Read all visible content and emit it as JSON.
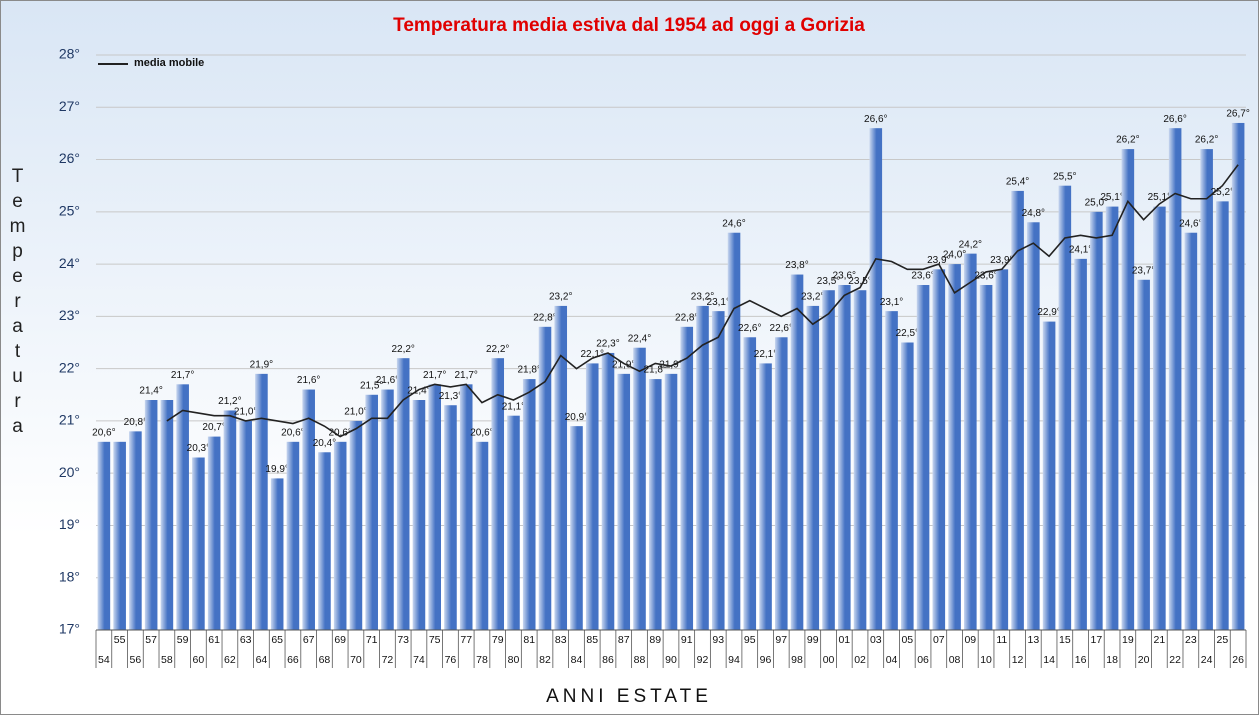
{
  "chart_data": {
    "type": "bar",
    "title": "Temperatura media estiva dal 1954 ad oggi a Gorizia",
    "y_label": "Temperatura",
    "x_label": "ANNI ESTATE",
    "categories": [
      "54",
      "55",
      "56",
      "57",
      "58",
      "59",
      "60",
      "61",
      "62",
      "63",
      "64",
      "65",
      "66",
      "67",
      "68",
      "69",
      "70",
      "71",
      "72",
      "73",
      "74",
      "75",
      "76",
      "77",
      "78",
      "79",
      "80",
      "81",
      "82",
      "83",
      "84",
      "85",
      "86",
      "87",
      "88",
      "89",
      "90",
      "91",
      "92",
      "93",
      "94",
      "95",
      "96",
      "97",
      "98",
      "99",
      "00",
      "01",
      "02",
      "03",
      "04",
      "05",
      "06",
      "07",
      "08",
      "09",
      "10",
      "11",
      "12",
      "13",
      "14",
      "15",
      "16",
      "17",
      "18",
      "19",
      "20",
      "21",
      "22",
      "23",
      "24",
      "25",
      "26"
    ],
    "ylim": [
      17,
      28
    ],
    "yticks": [
      {
        "value": 17,
        "label": "17°"
      },
      {
        "value": 18,
        "label": "18°"
      },
      {
        "value": 19,
        "label": "19°"
      },
      {
        "value": 20,
        "label": "20°"
      },
      {
        "value": 21,
        "label": "21°"
      },
      {
        "value": 22,
        "label": "22°"
      },
      {
        "value": 23,
        "label": "23°"
      },
      {
        "value": 24,
        "label": "24°"
      },
      {
        "value": 25,
        "label": "25°"
      },
      {
        "value": 26,
        "label": "26°"
      },
      {
        "value": 27,
        "label": "27°"
      },
      {
        "value": 28,
        "label": "28°"
      }
    ],
    "grid": true,
    "legend": "top-left",
    "series": [
      {
        "type": "bar",
        "color": "#4472c4",
        "values": [
          20.6,
          20.6,
          20.8,
          21.4,
          21.4,
          21.7,
          20.3,
          20.7,
          21.2,
          21.0,
          21.9,
          19.9,
          20.6,
          21.6,
          20.4,
          20.6,
          21.0,
          21.5,
          21.6,
          22.2,
          21.4,
          21.7,
          21.3,
          21.7,
          20.6,
          22.2,
          21.1,
          21.8,
          22.8,
          23.2,
          20.9,
          22.1,
          22.3,
          21.9,
          22.4,
          21.8,
          21.9,
          22.8,
          23.2,
          23.1,
          24.6,
          22.6,
          22.1,
          22.6,
          23.8,
          23.2,
          23.5,
          23.6,
          23.5,
          26.6,
          23.1,
          22.5,
          23.6,
          23.9,
          24.0,
          24.2,
          23.6,
          23.9,
          25.4,
          24.8,
          22.9,
          25.5,
          24.1,
          25.0,
          25.1,
          26.2,
          23.7,
          25.1,
          26.6,
          24.6,
          26.2,
          25.2,
          26.7
        ],
        "value_labels": [
          "20,6°",
          null,
          "20,8°",
          "21,4°",
          null,
          "21,7°",
          "20,3°",
          "20,7°",
          "21,2°",
          "21,0°",
          "21,9°",
          "19,9°",
          "20,6°",
          "21,6°",
          "20,4°",
          "20,6°",
          "21,0°",
          "21,5°",
          "21,6°",
          "22,2°",
          "21,4°",
          "21,7°",
          "21,3°",
          "21,7°",
          "20,6°",
          "22,2°",
          "21,1°",
          "21,8°",
          "22,8°",
          "23,2°",
          "20,9°",
          "22,1°",
          "22,3°",
          "21,9°",
          "22,4°",
          "21,8°",
          "21,9°",
          "22,8°",
          "23,2°",
          "23,1°",
          "24,6°",
          "22,6°",
          "22,1°",
          "22,6°",
          "23,8°",
          "23,2°",
          "23,5°",
          "23,6°",
          "23,5°",
          "26,6°",
          "23,1°",
          "22,5°",
          "23,6°",
          "23,9°",
          "24,0°",
          "24,2°",
          "23,6°",
          "23,9°",
          "25,4°",
          "24,8°",
          "22,9°",
          "25,5°",
          "24,1°",
          "25,0°",
          "25,1°",
          "26,2°",
          "23,7°",
          "25,1°",
          "26,6°",
          "24,6°",
          "26,2°",
          "25,2°",
          "26,7°"
        ]
      },
      {
        "type": "line",
        "name": "media mobile",
        "color": "#222222",
        "values": [
          null,
          null,
          null,
          null,
          21.0,
          21.2,
          21.15,
          21.1,
          21.1,
          21.0,
          21.05,
          21.0,
          20.95,
          21.05,
          20.9,
          20.7,
          20.85,
          21.05,
          21.05,
          21.4,
          21.6,
          21.7,
          21.65,
          21.7,
          21.35,
          21.5,
          21.4,
          21.55,
          21.75,
          22.25,
          22.0,
          22.2,
          22.3,
          22.1,
          21.95,
          22.1,
          22.05,
          22.2,
          22.45,
          22.6,
          23.15,
          23.3,
          23.15,
          23.0,
          23.15,
          22.85,
          23.05,
          23.4,
          23.55,
          24.1,
          24.05,
          23.9,
          23.9,
          24.0,
          23.45,
          23.65,
          23.85,
          23.9,
          24.25,
          24.4,
          24.15,
          24.5,
          24.55,
          24.5,
          24.55,
          25.2,
          24.85,
          25.15,
          25.35,
          25.25,
          25.25,
          25.5,
          25.9
        ]
      }
    ]
  }
}
